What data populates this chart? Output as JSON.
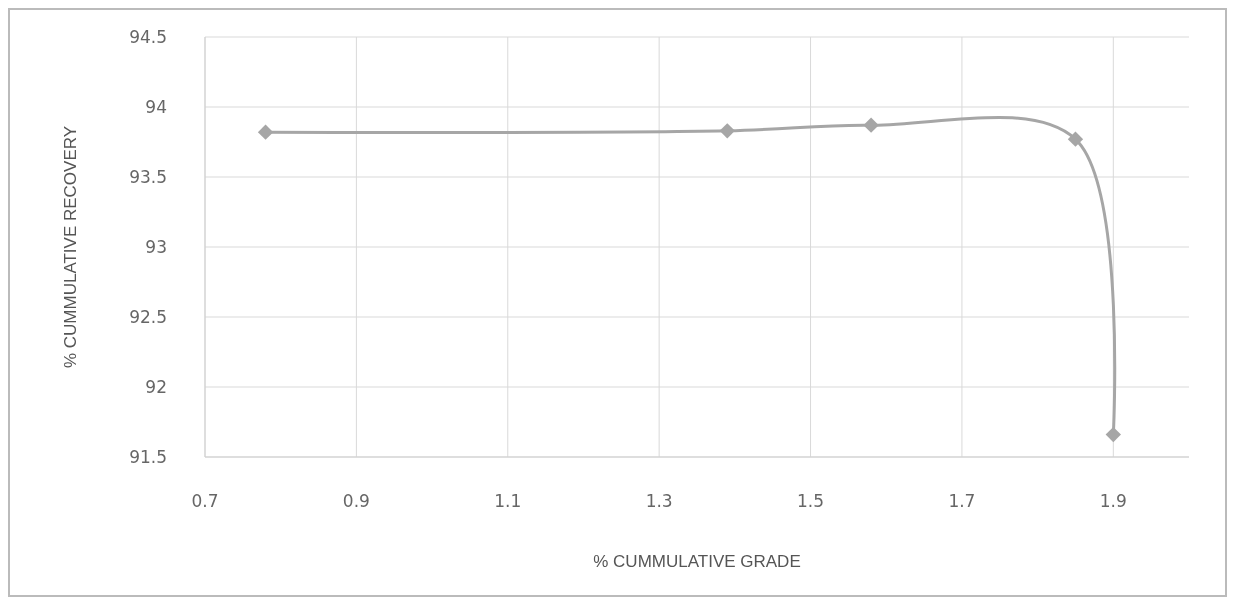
{
  "chart_data": {
    "type": "line",
    "xlabel": "% CUMMULATIVE GRADE",
    "ylabel": "% CUMMULATIVE RECOVERY",
    "x": [
      0.78,
      1.39,
      1.58,
      1.85,
      1.9
    ],
    "series": [
      {
        "color": "#a6a6a6",
        "values": [
          93.82,
          93.83,
          93.87,
          93.77,
          91.66
        ]
      }
    ],
    "xlim": [
      0.7,
      2.0
    ],
    "xticks": [
      0.7,
      0.9,
      1.1,
      1.3,
      1.5,
      1.7,
      1.9
    ],
    "ylim": [
      91.5,
      94.5
    ],
    "yticks": [
      91.5,
      92,
      92.5,
      93,
      93.5,
      94,
      94.5
    ],
    "grid": true,
    "marker": "diamond",
    "line_style": "solid"
  }
}
